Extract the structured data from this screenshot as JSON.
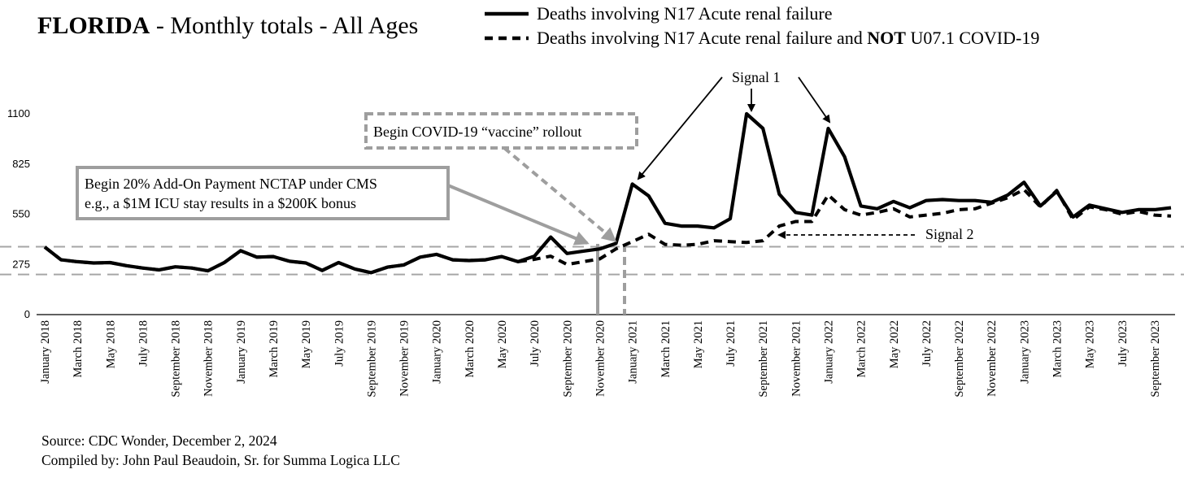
{
  "title": {
    "bold": "FLORIDA",
    "rest": " - Monthly totals - All Ages"
  },
  "legend": [
    {
      "style": "solid",
      "text": "Deaths involving N17 Acute renal failure"
    },
    {
      "style": "dashed",
      "text_pre": "Deaths involving N17 Acute renal failure and ",
      "text_bold": "NOT",
      "text_post": " U07.1 COVID-19"
    }
  ],
  "annotations": {
    "signal1": "Signal 1",
    "signal2": "Signal 2",
    "vaccine": "Begin COVID-19 “vaccine” rollout",
    "ncTap_line1": "Begin 20% Add-On Payment NCTAP under CMS",
    "ncTap_line2": "e.g., a $1M ICU stay results in a $200K bonus"
  },
  "source": {
    "line1": "Source:  CDC Wonder, December 2, 2024",
    "line2": "Compiled by:  John Paul Beaudoin, Sr. for Summa Logica LLC"
  },
  "colors": {
    "series": "#000000",
    "annotation_gray": "#9e9e9e",
    "reference_lines": "#a6a6a6"
  },
  "chart_data": {
    "type": "line",
    "ylim": [
      0,
      1100
    ],
    "yticks": [
      0,
      275,
      550,
      825,
      1100
    ],
    "x": [
      "January 2018",
      "February 2018",
      "March 2018",
      "April 2018",
      "May 2018",
      "June 2018",
      "July 2018",
      "August 2018",
      "September 2018",
      "October 2018",
      "November 2018",
      "December 2018",
      "January 2019",
      "February 2019",
      "March 2019",
      "April 2019",
      "May 2019",
      "June 2019",
      "July 2019",
      "August 2019",
      "September 2019",
      "October 2019",
      "November 2019",
      "December 2019",
      "January 2020",
      "February 2020",
      "March 2020",
      "April 2020",
      "May 2020",
      "June 2020",
      "July 2020",
      "August 2020",
      "September 2020",
      "October 2020",
      "November 2020",
      "December 2020",
      "January 2021",
      "February 2021",
      "March 2021",
      "April 2021",
      "May 2021",
      "June 2021",
      "July 2021",
      "August 2021",
      "September 2021",
      "October 2021",
      "November 2021",
      "December 2021",
      "January 2022",
      "February 2022",
      "March 2022",
      "April 2022",
      "May 2022",
      "June 2022",
      "July 2022",
      "August 2022",
      "September 2022",
      "October 2022",
      "November 2022",
      "December 2022",
      "January 2023",
      "February 2023",
      "March 2023",
      "April 2023",
      "May 2023",
      "June 2023",
      "July 2023",
      "August 2023",
      "September 2023",
      "October 2023"
    ],
    "xtick_labels": [
      "January 2018",
      "March 2018",
      "May 2018",
      "July 2018",
      "September 2018",
      "November 2018",
      "January 2019",
      "March 2019",
      "May 2019",
      "July 2019",
      "September 2019",
      "November 2019",
      "January 2020",
      "March 2020",
      "May 2020",
      "July 2020",
      "September 2020",
      "November 2020",
      "January 2021",
      "March 2021",
      "May 2021",
      "July 2021",
      "September 2021",
      "November 2021",
      "January 2022",
      "March 2022",
      "May 2022",
      "July 2022",
      "September 2022",
      "November 2022",
      "January 2023",
      "March 2023",
      "May 2023",
      "July 2023",
      "September 2023"
    ],
    "reference_lines_y": [
      372,
      220
    ],
    "series": [
      {
        "name": "Deaths involving N17 Acute renal failure",
        "style": "solid",
        "values": [
          370,
          300,
          290,
          283,
          285,
          268,
          255,
          245,
          262,
          255,
          240,
          285,
          350,
          315,
          318,
          292,
          283,
          242,
          285,
          250,
          230,
          260,
          272,
          315,
          330,
          300,
          296,
          300,
          318,
          290,
          320,
          425,
          335,
          348,
          360,
          390,
          715,
          650,
          500,
          485,
          485,
          475,
          525,
          1100,
          1020,
          660,
          560,
          545,
          1020,
          865,
          595,
          580,
          620,
          585,
          625,
          630,
          625,
          625,
          615,
          655,
          725,
          595,
          675,
          535,
          600,
          580,
          560,
          575,
          575,
          585
        ]
      },
      {
        "name": "Deaths involving N17 Acute renal failure and NOT U07.1 COVID-19",
        "style": "dashed",
        "values": [
          370,
          300,
          290,
          283,
          285,
          268,
          255,
          245,
          262,
          255,
          240,
          285,
          350,
          315,
          318,
          292,
          283,
          242,
          285,
          250,
          230,
          260,
          272,
          315,
          330,
          300,
          296,
          300,
          318,
          290,
          303,
          320,
          275,
          290,
          305,
          360,
          400,
          440,
          385,
          380,
          385,
          405,
          400,
          395,
          405,
          485,
          510,
          510,
          655,
          575,
          545,
          560,
          580,
          535,
          545,
          555,
          575,
          580,
          610,
          640,
          685,
          590,
          680,
          520,
          590,
          575,
          550,
          565,
          545,
          540
        ]
      }
    ]
  }
}
